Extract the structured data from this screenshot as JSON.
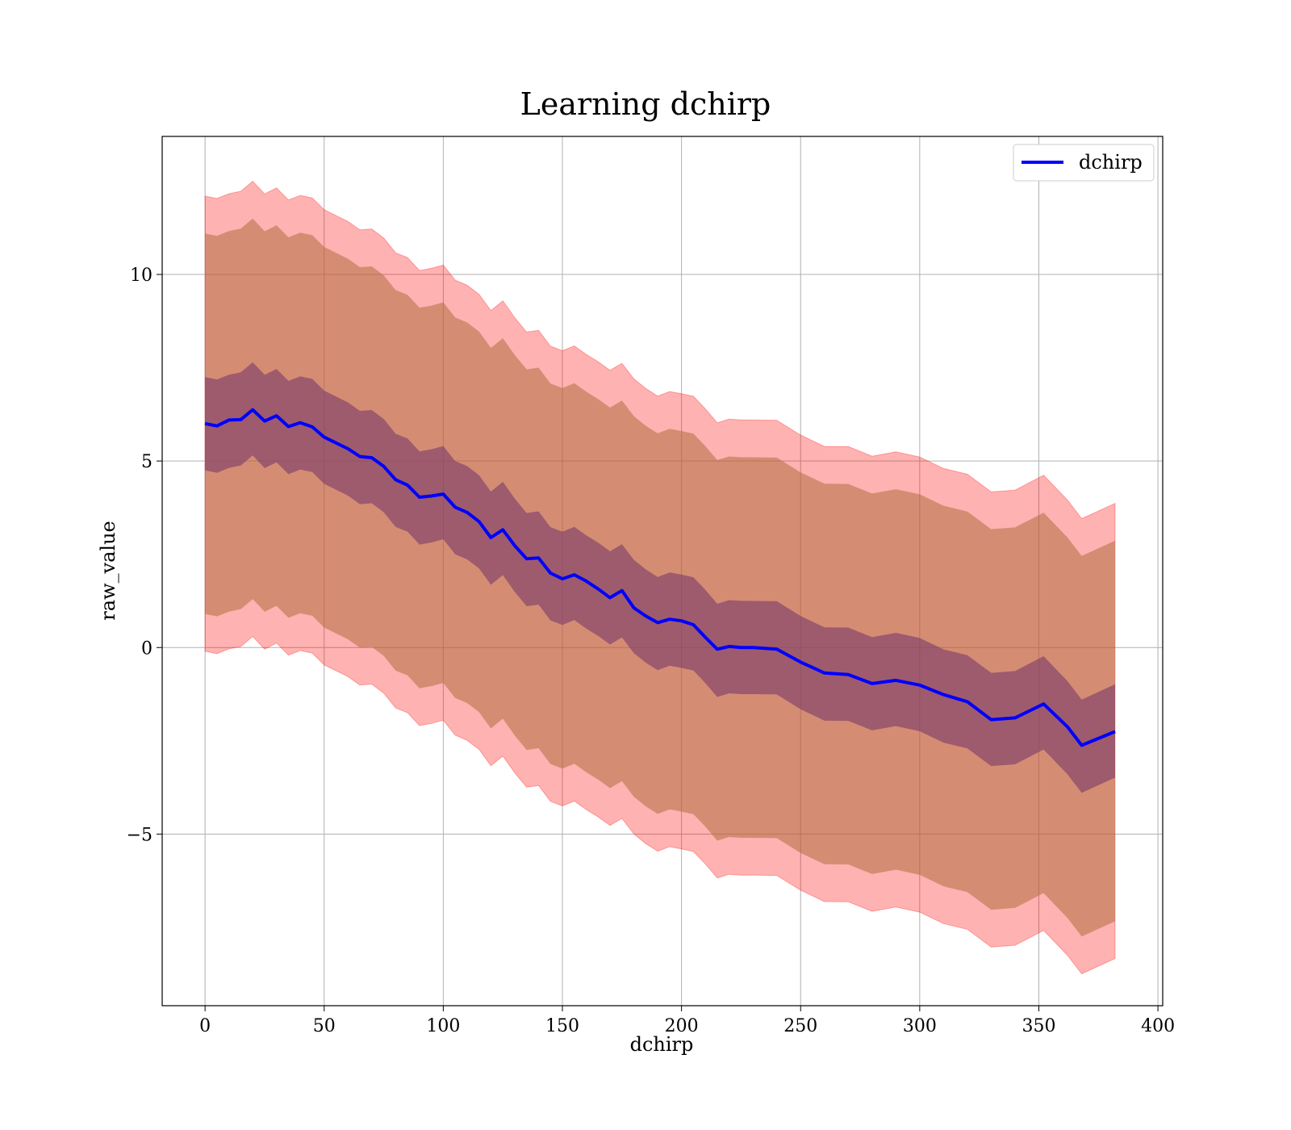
{
  "chart_data": {
    "type": "line",
    "title": "Learning dchirp",
    "xlabel": "dchirp",
    "ylabel": "raw_value",
    "xlim": [
      -18,
      402
    ],
    "ylim": [
      -9.6,
      13.7
    ],
    "xticks": [
      0,
      50,
      100,
      150,
      200,
      250,
      300,
      350,
      400
    ],
    "xtick_labels": [
      "0",
      "50",
      "100",
      "150",
      "200",
      "250",
      "300",
      "350",
      "400"
    ],
    "yticks": [
      -5,
      0,
      5,
      10
    ],
    "ytick_labels": [
      "−5",
      "0",
      "5",
      "10"
    ],
    "grid": true,
    "legend": {
      "position": "top-right",
      "entries": [
        "dchirp"
      ]
    },
    "colors": {
      "line": "#0000ff",
      "outer_band": "#ff0000",
      "middle_band": "#b07040",
      "inner_band": "#7a3a6a"
    },
    "series": [
      {
        "name": "dchirp",
        "x": [
          0,
          5,
          10,
          15,
          20,
          25,
          30,
          35,
          40,
          45,
          50,
          55,
          60,
          65,
          70,
          75,
          80,
          85,
          90,
          95,
          100,
          105,
          110,
          115,
          120,
          125,
          130,
          135,
          140,
          145,
          150,
          155,
          160,
          165,
          170,
          175,
          180,
          185,
          190,
          195,
          200,
          205,
          210,
          215,
          220,
          225,
          230,
          240,
          250,
          260,
          270,
          280,
          290,
          300,
          310,
          320,
          330,
          340,
          352,
          362,
          368,
          382
        ],
        "values": [
          6.0,
          5.95,
          6.2,
          6.05,
          6.3,
          6.1,
          6.2,
          6.0,
          6.05,
          5.8,
          5.65,
          5.5,
          5.35,
          5.2,
          5.0,
          4.8,
          4.55,
          4.35,
          4.1,
          4.05,
          4.0,
          3.8,
          3.65,
          3.4,
          3.0,
          3.05,
          2.7,
          2.45,
          2.4,
          2.05,
          1.8,
          1.85,
          1.85,
          1.6,
          1.35,
          1.55,
          0.95,
          0.85,
          0.75,
          0.75,
          0.75,
          0.55,
          0.2,
          0.05,
          0.05,
          0.0,
          0.0,
          -0.15,
          -0.35,
          -0.6,
          -0.75,
          -0.95,
          -0.95,
          -1.05,
          -1.15,
          -1.45,
          -1.95,
          -1.9,
          -1.6,
          -2.05,
          -2.55,
          -2.3
        ]
      },
      {
        "name": "inner_band_halfwidth",
        "x": [
          0,
          382
        ],
        "values": [
          1.25,
          1.25
        ]
      },
      {
        "name": "middle_band_halfwidth",
        "x": [
          0,
          382
        ],
        "values": [
          5.1,
          5.1
        ]
      },
      {
        "name": "outer_band_halfwidth",
        "x": [
          0,
          382
        ],
        "values": [
          6.1,
          6.1
        ]
      }
    ]
  }
}
